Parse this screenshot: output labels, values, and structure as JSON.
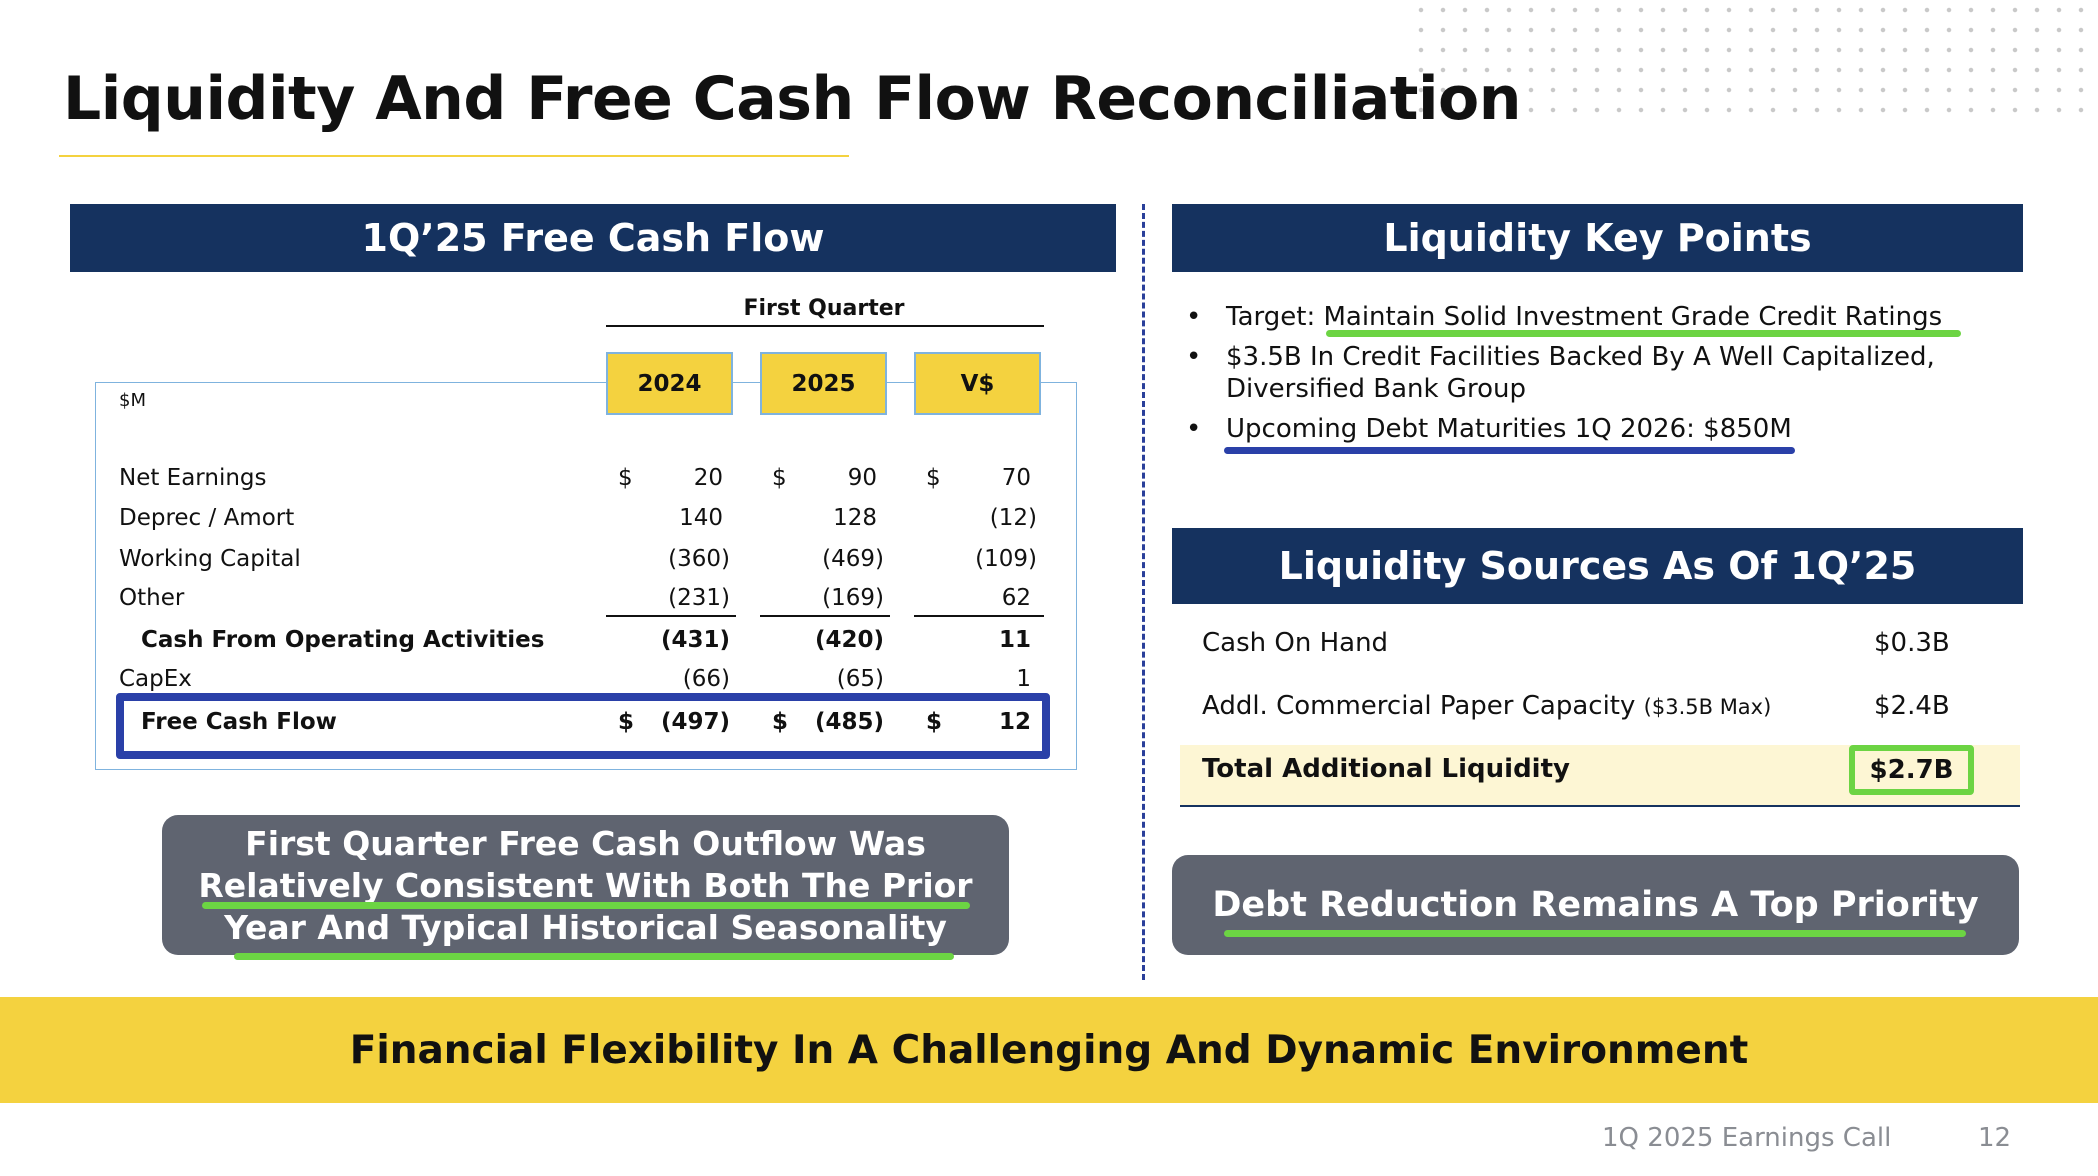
{
  "title": "Liquidity And Free Cash Flow Reconciliation",
  "fcf": {
    "header": "1Q’25 Free Cash Flow",
    "period_label": "First Quarter",
    "unit": "$M",
    "columns": [
      "2024",
      "2025",
      "V$"
    ],
    "rows": [
      {
        "label": "Net Earnings",
        "dollar": "$",
        "values": [
          "20",
          "90",
          "70"
        ]
      },
      {
        "label": "Deprec / Amort",
        "dollar": "",
        "values": [
          "140",
          "128",
          "(12)"
        ]
      },
      {
        "label": "Working Capital",
        "dollar": "",
        "values": [
          "(360)",
          "(469)",
          "(109)"
        ]
      },
      {
        "label": "Other",
        "dollar": "",
        "values": [
          "(231)",
          "(169)",
          "62"
        ]
      },
      {
        "label": "Cash From Operating Activities",
        "dollar": "",
        "values": [
          "(431)",
          "(420)",
          "11"
        ]
      },
      {
        "label": "CapEx",
        "dollar": "",
        "values": [
          "(66)",
          "(65)",
          "1"
        ]
      },
      {
        "label": "Free Cash Flow",
        "dollar": "$",
        "values": [
          "(497)",
          "(485)",
          "12"
        ]
      }
    ],
    "callout": [
      "First Quarter Free Cash Outflow Was",
      "Relatively Consistent With Both The Prior",
      "Year And Typical Historical Seasonality"
    ]
  },
  "key_points": {
    "header": "Liquidity Key Points",
    "bullets": [
      {
        "prefix": "Target: ",
        "text": "Maintain Solid Investment Grade Credit Ratings"
      },
      {
        "line1": "$3.5B In Credit Facilities Backed By A Well Capitalized,",
        "line2": "Diversified Bank Group"
      },
      {
        "text": "Upcoming Debt Maturities 1Q 2026: $850M"
      }
    ],
    "bullet_glyph": "•"
  },
  "sources": {
    "header": "Liquidity Sources As Of 1Q’25",
    "rows": [
      {
        "label": "Cash On Hand",
        "note": "",
        "value": "$0.3B"
      },
      {
        "label": "Addl. Commercial Paper Capacity",
        "note": "($3.5B Max)",
        "value": "$2.4B"
      }
    ],
    "total_label": "Total Additional Liquidity",
    "total_value": "$2.7B"
  },
  "debt_callout": "Debt Reduction Remains A Top Priority",
  "banner": "Financial Flexibility In A Challenging And Dynamic Environment",
  "footer": {
    "event": "1Q 2025 Earnings Call",
    "page": "12"
  },
  "colors": {
    "navy": "#15325f",
    "yellow": "#f4d23f",
    "green": "#6cd443",
    "blue": "#2a40a8",
    "gray": "#5f6470",
    "cream": "#fdf6d4"
  }
}
